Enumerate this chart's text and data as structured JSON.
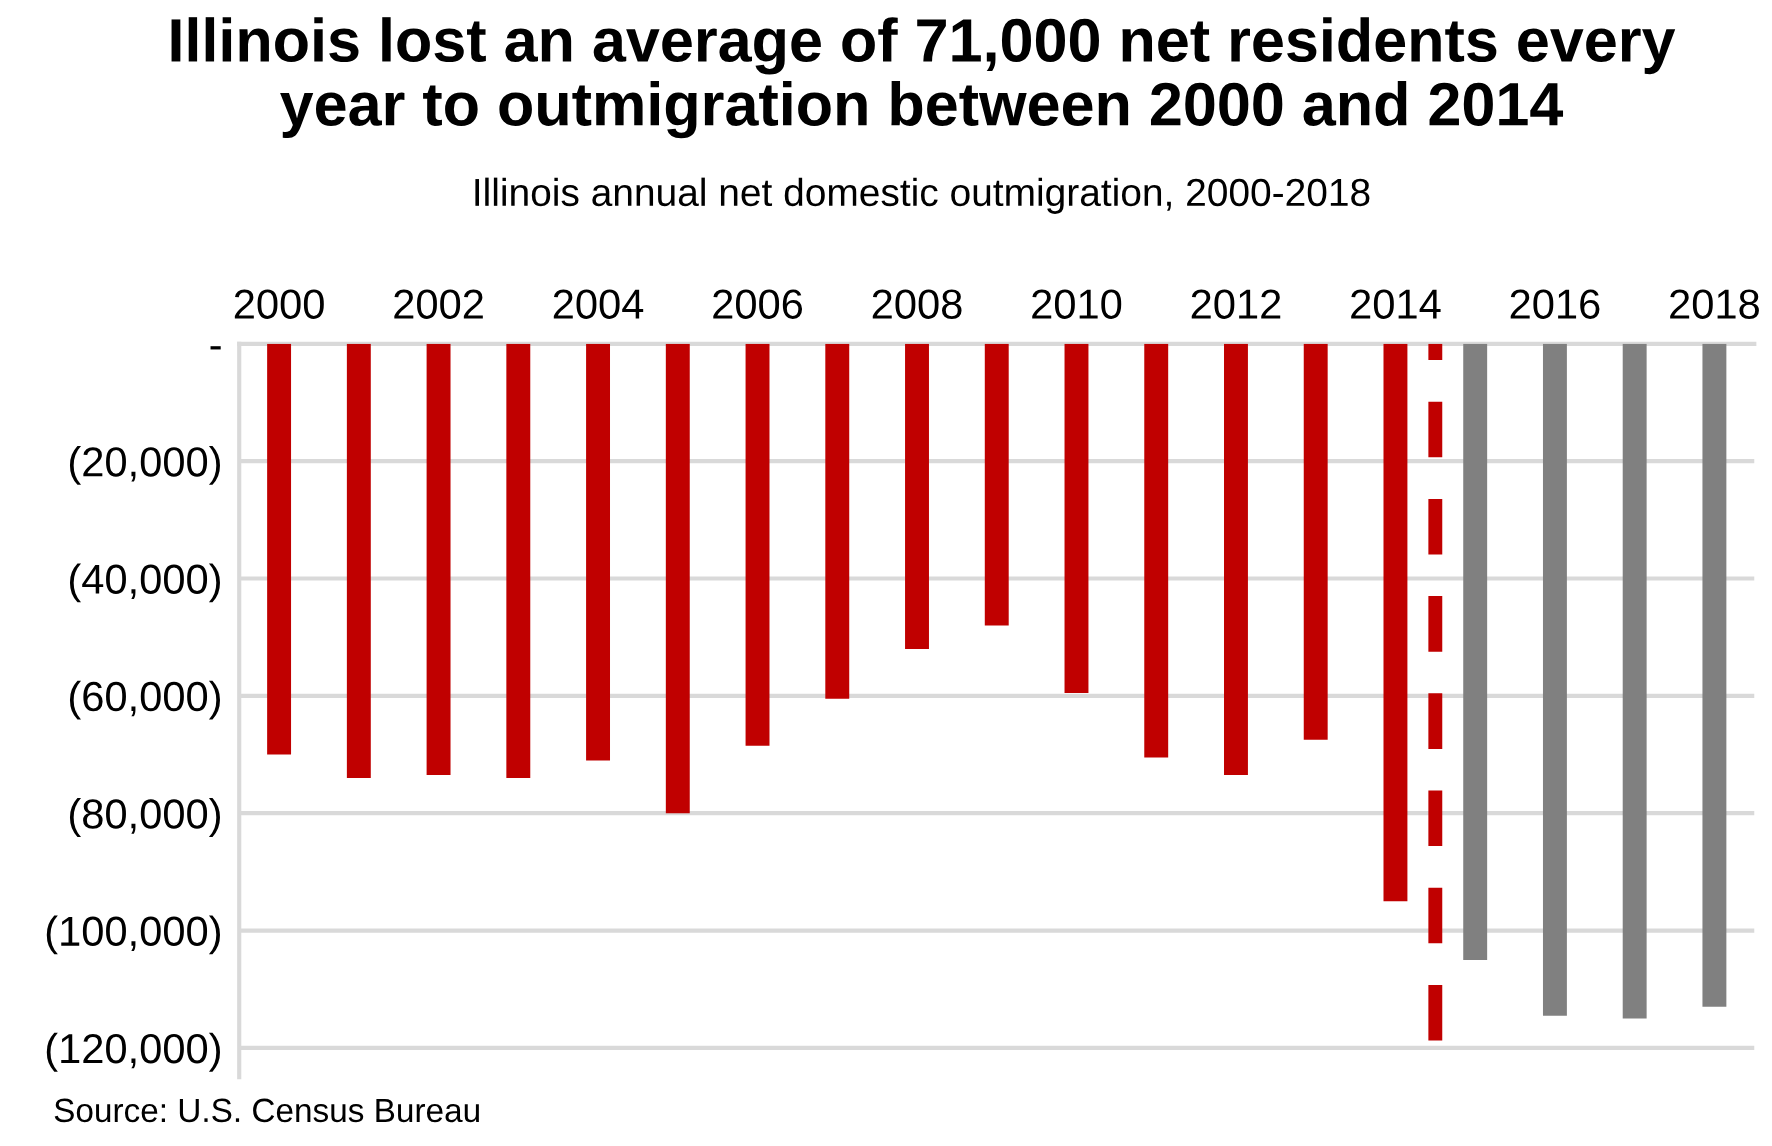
{
  "chart_data": {
    "type": "bar",
    "title": "Illinois lost an average of 71,000 net residents every\nyear to outmigration between 2000 and 2014",
    "subtitle": "Illinois annual net domestic outmigration, 2000-2018",
    "x": [
      2000,
      2001,
      2002,
      2003,
      2004,
      2005,
      2006,
      2007,
      2008,
      2009,
      2010,
      2011,
      2012,
      2013,
      2014,
      2015,
      2016,
      2017,
      2018
    ],
    "values": [
      -70000,
      -74000,
      -73500,
      -74000,
      -71000,
      -80000,
      -68500,
      -60500,
      -52000,
      -48000,
      -59500,
      -70500,
      -73500,
      -67500,
      -95000,
      -105000,
      -114500,
      -115000,
      -113000
    ],
    "colors": [
      "#c00000",
      "#c00000",
      "#c00000",
      "#c00000",
      "#c00000",
      "#c00000",
      "#c00000",
      "#c00000",
      "#c00000",
      "#c00000",
      "#c00000",
      "#c00000",
      "#c00000",
      "#c00000",
      "#c00000",
      "#808080",
      "#808080",
      "#808080",
      "#808080"
    ],
    "xlim": [
      1999.5,
      2018.5
    ],
    "xticks": [
      2000,
      2002,
      2004,
      2006,
      2008,
      2010,
      2012,
      2014,
      2016,
      2018
    ],
    "ylim": [
      -125000,
      0
    ],
    "yticks": [
      {
        "value": 0,
        "label": "-"
      },
      {
        "value": -20000,
        "label": "(20,000)"
      },
      {
        "value": -40000,
        "label": "(40,000)"
      },
      {
        "value": -60000,
        "label": "(60,000)"
      },
      {
        "value": -80000,
        "label": "(80,000)"
      },
      {
        "value": -100000,
        "label": "(100,000)"
      },
      {
        "value": -120000,
        "label": "(120,000)"
      }
    ],
    "ref_lines": [
      {
        "axis": "x",
        "value": 2014.5,
        "label": null,
        "color": "#c00000",
        "line_style": "dashed"
      }
    ],
    "grid": "y",
    "legend": false,
    "annotations": [
      "Source: U.S. Census Bureau"
    ]
  }
}
